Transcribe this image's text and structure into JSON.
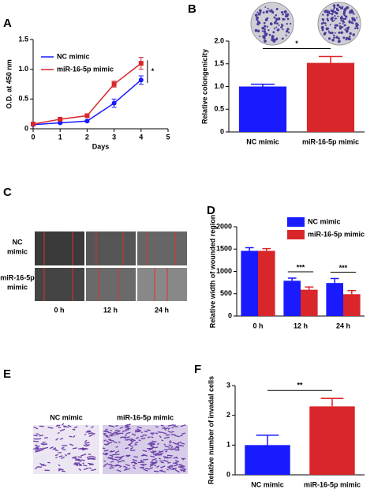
{
  "panels": {
    "c": "C",
    "e": "E"
  },
  "wound_assay": {
    "row_labels": [
      [
        "NC",
        "mimic"
      ],
      [
        "miR-16-5p",
        "mimic"
      ]
    ],
    "columns": [
      "0 h",
      "12 h",
      "24 h"
    ]
  },
  "invasion": {
    "labels": [
      "NC mimic",
      "miR-16-5p mimic"
    ]
  },
  "chart_data": [
    {
      "type": "line",
      "panel": "A",
      "x": [
        0,
        1,
        2,
        3,
        4
      ],
      "xlim": [
        0,
        5
      ],
      "xticks": [
        0,
        1,
        2,
        3,
        4,
        5
      ],
      "ylim": [
        0,
        1.5
      ],
      "yticks": [
        0,
        0.5,
        {
          "value": 1,
          "label": "1.0"
        },
        1.5
      ],
      "x_label": "Days",
      "y_label": "O.D. at 450 nm",
      "legend": "upper left",
      "annotation": "*",
      "series": [
        {
          "name": "NC mimic",
          "color": "#1a1aff",
          "marker": "circle",
          "values": [
            0.07,
            0.1,
            0.13,
            0.43,
            0.82
          ],
          "errors": [
            0.01,
            0.01,
            0.01,
            0.07,
            0.07
          ]
        },
        {
          "name": "miR-16-5p mimic",
          "color": "#d9262b",
          "marker": "square",
          "values": [
            0.08,
            0.16,
            0.22,
            0.75,
            1.1
          ],
          "errors": [
            0.01,
            0.02,
            0.02,
            0.05,
            0.1
          ]
        }
      ]
    },
    {
      "type": "bar",
      "panel": "B",
      "categories": [
        "NC mimic",
        "miR-16-5p mimic"
      ],
      "values": [
        1.0,
        1.52
      ],
      "errors": [
        0.05,
        0.14
      ],
      "colors": [
        "#1a1aff",
        "#d9262b"
      ],
      "ylim": [
        0,
        2
      ],
      "yticks": [
        0,
        0.5,
        {
          "value": 1,
          "label": "1.0"
        },
        1.5,
        {
          "value": 2,
          "label": "2.0"
        }
      ],
      "y_label": "Relative colongenicity",
      "annotation": "*"
    },
    {
      "type": "bar",
      "panel": "D",
      "categories": [
        "0 h",
        "12 h",
        "24 h"
      ],
      "ylim": [
        0,
        2000
      ],
      "yticks": [
        0,
        500,
        1000,
        1500,
        2000
      ],
      "y_label": "Relative width of wounded region",
      "legend": "upper right",
      "annotations": [
        null,
        "***",
        "***"
      ],
      "series": [
        {
          "name": "NC mimic",
          "color": "#1a1aff",
          "values": [
            1460,
            790,
            740
          ],
          "errors": [
            70,
            60,
            100
          ]
        },
        {
          "name": "miR-16-5p mimic",
          "color": "#d9262b",
          "values": [
            1460,
            590,
            490
          ],
          "errors": [
            50,
            60,
            80
          ]
        }
      ]
    },
    {
      "type": "bar",
      "panel": "F",
      "categories": [
        "NC mimic",
        "miR-16-5p mimic"
      ],
      "values": [
        1.0,
        2.3
      ],
      "errors": [
        0.33,
        0.27
      ],
      "colors": [
        "#1a1aff",
        "#d9262b"
      ],
      "ylim": [
        0,
        3
      ],
      "yticks": [
        0,
        1,
        2,
        3
      ],
      "y_label": "Relative  number of invadal cells",
      "annotation": "**"
    }
  ]
}
